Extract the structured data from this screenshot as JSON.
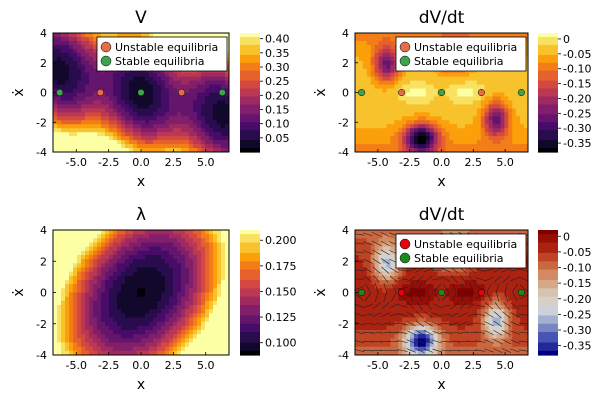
{
  "chart_data": [
    {
      "type": "heatmap",
      "title": "V",
      "xlabel": "x",
      "ylabel": "ẋ",
      "xlim": [
        -6.8,
        6.8
      ],
      "ylim": [
        -4,
        4
      ],
      "xticks": [
        "-5.0",
        "-2.5",
        "0.0",
        "2.5",
        "5.0"
      ],
      "xtick_values": [
        -5,
        -2.5,
        0,
        2.5,
        5
      ],
      "yticks": [
        "-4",
        "-2",
        "0",
        "2",
        "4"
      ],
      "ytick_values": [
        -4,
        -2,
        0,
        2,
        4
      ],
      "colorscale": "inferno",
      "colorbar": {
        "min": 0.0,
        "max": 0.42,
        "tick_values": [
          0.05,
          0.1,
          0.15,
          0.2,
          0.25,
          0.3,
          0.35,
          0.4
        ],
        "ticks": [
          "0.05",
          "0.10",
          "0.15",
          "0.20",
          "0.25",
          "0.30",
          "0.35",
          "0.40"
        ]
      },
      "legend": {
        "position": "top-right",
        "entries": [
          "Unstable equilibria",
          "Stable equilibria"
        ]
      },
      "series": [
        {
          "name": "Unstable equilibria",
          "color": "#e26f46",
          "points": [
            [
              -3.14,
              0
            ],
            [
              3.14,
              0
            ]
          ]
        },
        {
          "name": "Stable equilibria",
          "color": "#3da44d",
          "points": [
            [
              -6.28,
              0
            ],
            [
              0,
              0
            ],
            [
              6.28,
              0
            ]
          ]
        }
      ]
    },
    {
      "type": "heatmap",
      "title": "dV/dt",
      "xlabel": "x",
      "ylabel": "ẋ",
      "xlim": [
        -6.8,
        6.8
      ],
      "ylim": [
        -4,
        4
      ],
      "xticks": [
        "-5.0",
        "-2.5",
        "0.0",
        "2.5",
        "5.0"
      ],
      "xtick_values": [
        -5,
        -2.5,
        0,
        2.5,
        5
      ],
      "yticks": [
        "-4",
        "-2",
        "0",
        "2",
        "4"
      ],
      "ytick_values": [
        -4,
        -2,
        0,
        2,
        4
      ],
      "colorscale": "inferno",
      "colorbar": {
        "min": -0.38,
        "max": 0.02,
        "tick_values": [
          0.0,
          -0.05,
          -0.1,
          -0.15,
          -0.2,
          -0.25,
          -0.3,
          -0.35
        ],
        "ticks": [
          "0",
          "-0.05",
          "-0.10",
          "-0.15",
          "-0.20",
          "-0.25",
          "-0.30",
          "-0.35"
        ]
      },
      "legend": {
        "position": "top-right",
        "entries": [
          "Unstable equilibria",
          "Stable equilibria"
        ]
      },
      "series": [
        {
          "name": "Unstable equilibria",
          "color": "#e26f46",
          "points": [
            [
              -3.14,
              0
            ],
            [
              3.14,
              0
            ]
          ]
        },
        {
          "name": "Stable equilibria",
          "color": "#3da44d",
          "points": [
            [
              -6.28,
              0
            ],
            [
              0,
              0
            ],
            [
              6.28,
              0
            ]
          ]
        }
      ]
    },
    {
      "type": "heatmap",
      "title": "λ",
      "xlabel": "x",
      "ylabel": "ẋ",
      "xlim": [
        -6.8,
        6.8
      ],
      "ylim": [
        -4,
        4
      ],
      "xticks": [
        "-5.0",
        "-2.5",
        "0.0",
        "2.5",
        "5.0"
      ],
      "xtick_values": [
        -5,
        -2.5,
        0,
        2.5,
        5
      ],
      "yticks": [
        "-4",
        "-2",
        "0",
        "2",
        "4"
      ],
      "ytick_values": [
        -4,
        -2,
        0,
        2,
        4
      ],
      "colorscale": "inferno",
      "colorbar": {
        "min": 0.088,
        "max": 0.21,
        "tick_values": [
          0.1,
          0.125,
          0.15,
          0.175,
          0.2
        ],
        "ticks": [
          "0.100",
          "0.125",
          "0.150",
          "0.175",
          "0.200"
        ]
      },
      "series": []
    },
    {
      "type": "heatmap",
      "title": "dV/dt",
      "xlabel": "x",
      "ylabel": "ẋ",
      "xlim": [
        -6.8,
        6.8
      ],
      "ylim": [
        -4,
        4
      ],
      "xticks": [
        "-5.0",
        "-2.5",
        "0.0",
        "2.5",
        "5.0"
      ],
      "xtick_values": [
        -5,
        -2.5,
        0,
        2.5,
        5
      ],
      "yticks": [
        "-4",
        "-2",
        "0",
        "2",
        "4"
      ],
      "ytick_values": [
        -4,
        -2,
        0,
        2,
        4
      ],
      "colorscale": "red-blue",
      "colorbar": {
        "min": -0.38,
        "max": 0.02,
        "tick_values": [
          0.0,
          -0.05,
          -0.1,
          -0.15,
          -0.2,
          -0.25,
          -0.3,
          -0.35
        ],
        "ticks": [
          "0",
          "-0.05",
          "-0.10",
          "-0.15",
          "-0.20",
          "-0.25",
          "-0.30",
          "-0.35"
        ]
      },
      "vector_field": true,
      "legend": {
        "position": "top-right",
        "entries": [
          "Unstable equilibria",
          "Stable equilibria"
        ]
      },
      "series": [
        {
          "name": "Unstable equilibria",
          "color": "#e8000b",
          "points": [
            [
              -3.14,
              0
            ],
            [
              3.14,
              0
            ]
          ]
        },
        {
          "name": "Stable equilibria",
          "color": "#1a8a1a",
          "points": [
            [
              -6.28,
              0
            ],
            [
              0,
              0
            ],
            [
              6.28,
              0
            ]
          ]
        }
      ]
    }
  ]
}
